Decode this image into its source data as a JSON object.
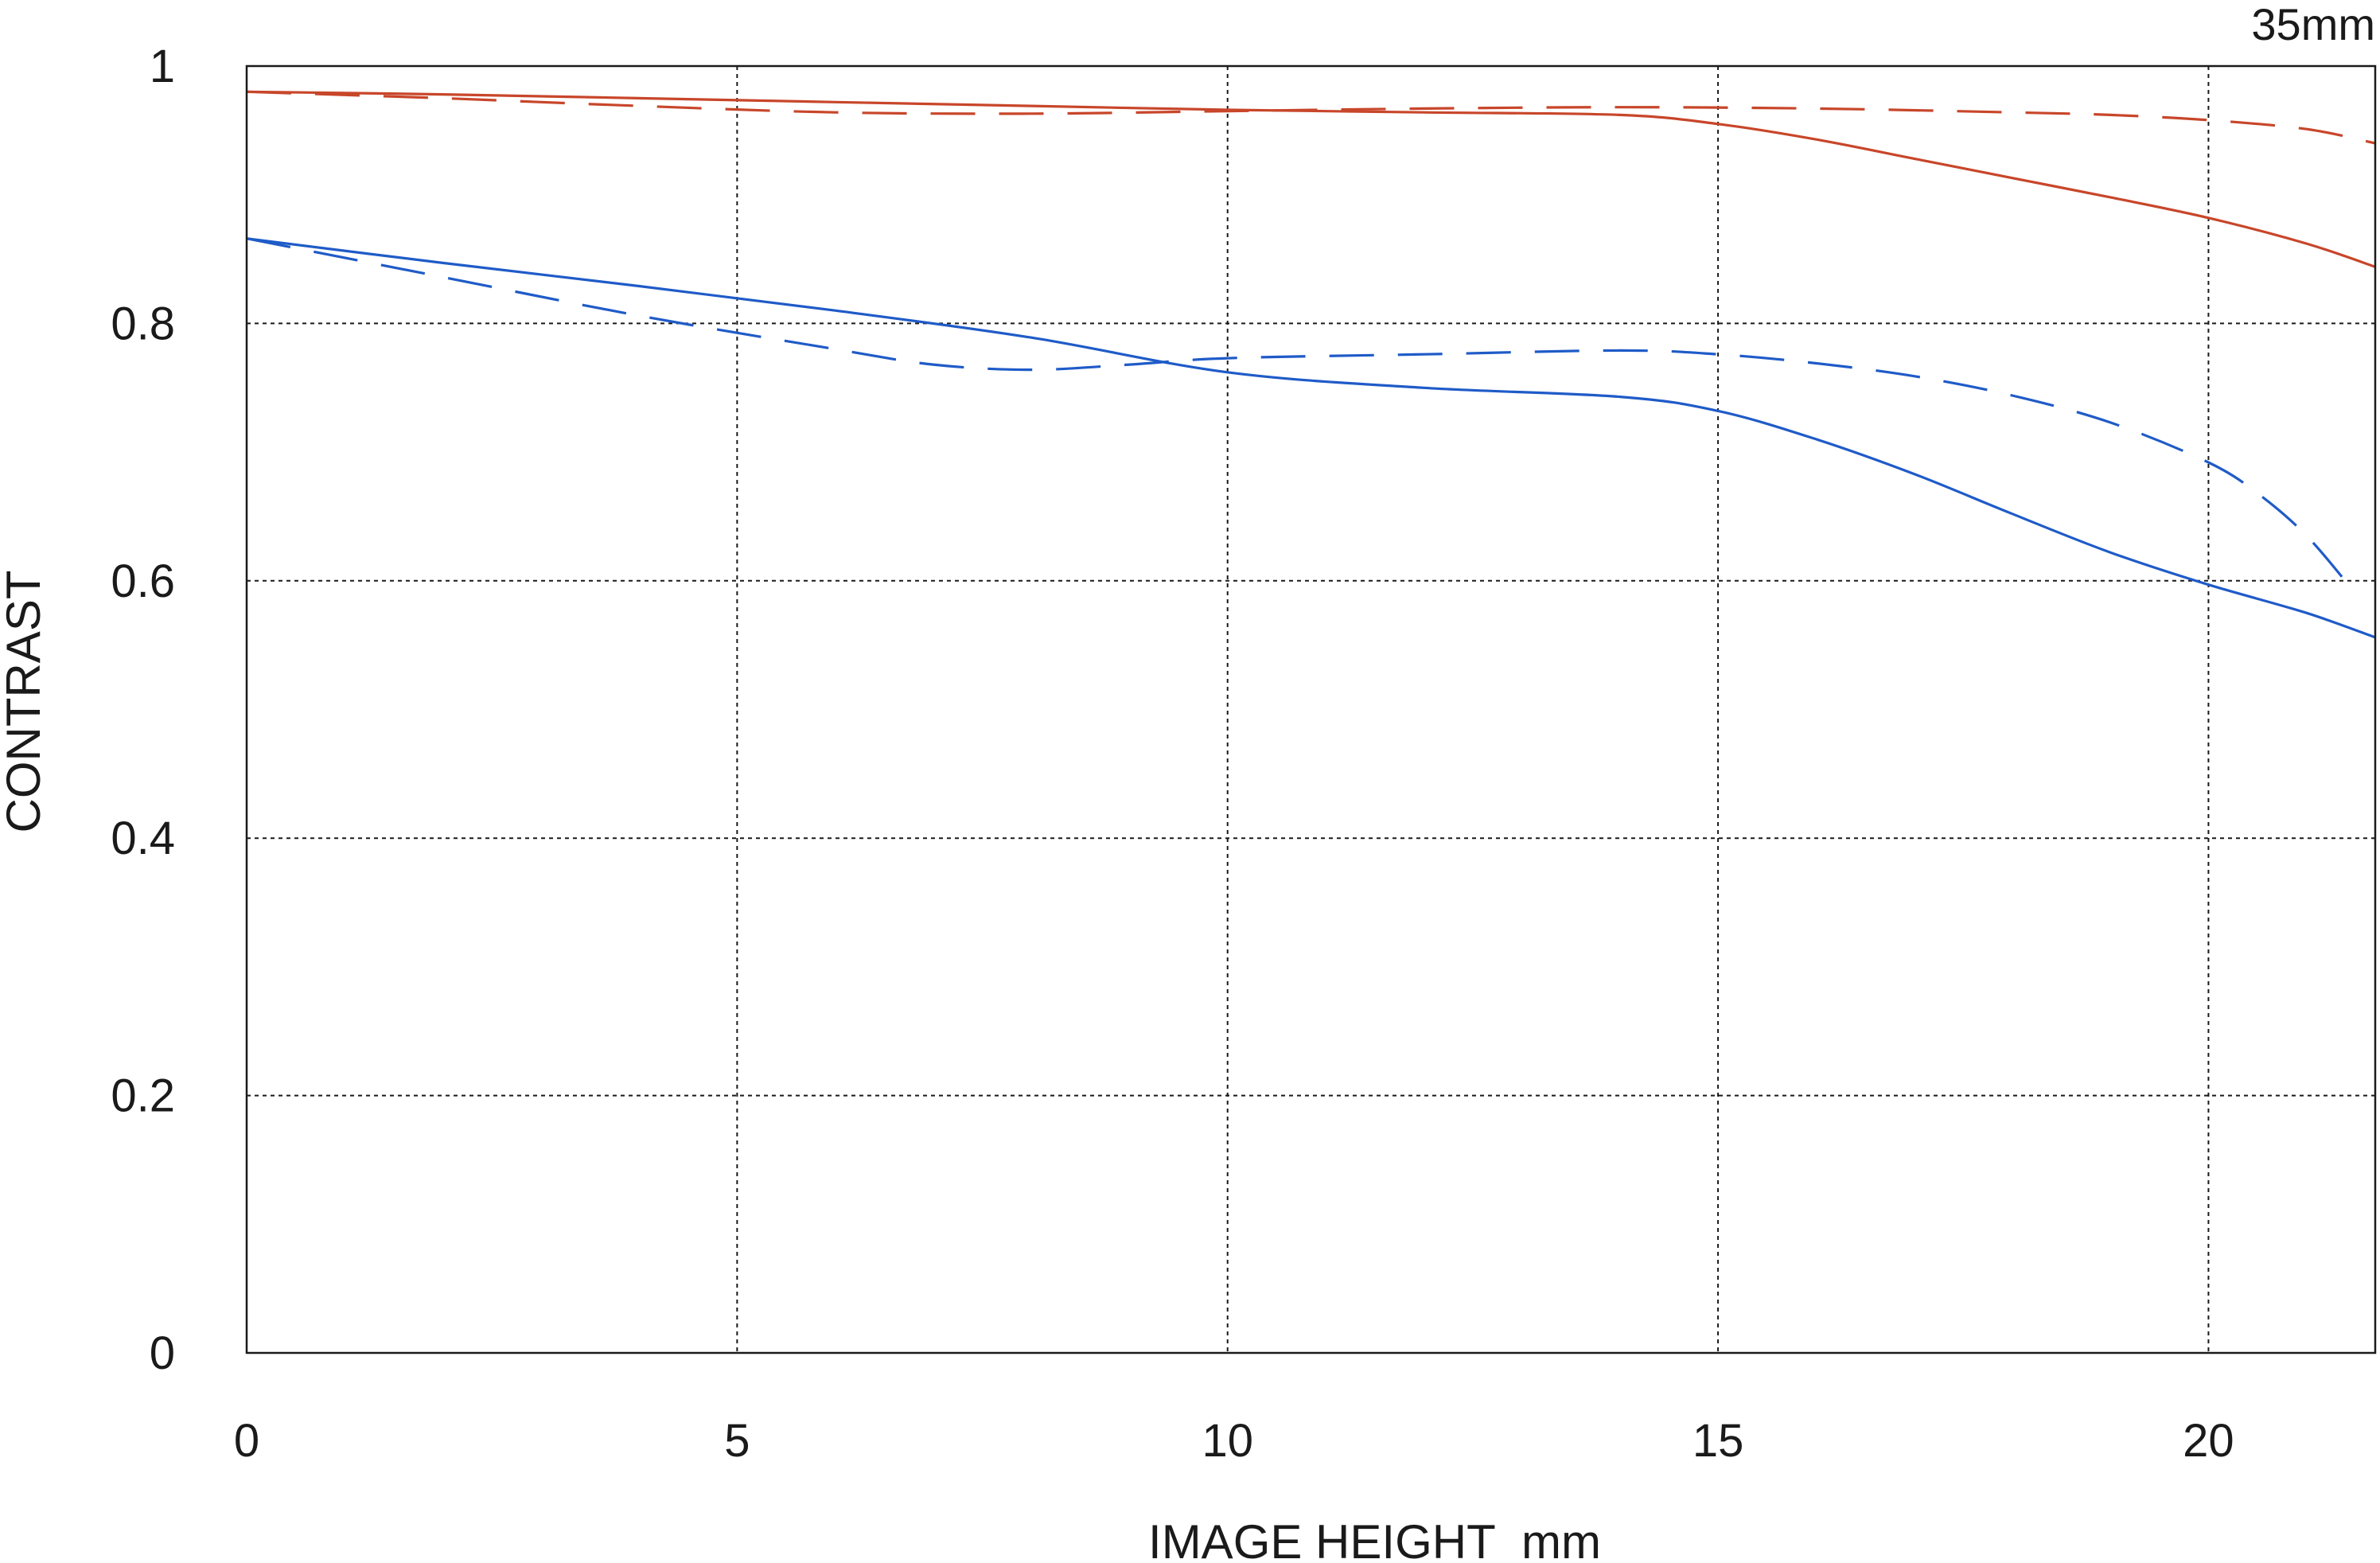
{
  "chart_data": {
    "type": "line",
    "title": "",
    "corner_label": "35mm",
    "xlabel": "IMAGE HEIGHT  mm",
    "ylabel": "CONTRAST",
    "xlim": [
      0,
      21.7
    ],
    "ylim": [
      0,
      1
    ],
    "x_ticks": [
      {
        "value": 0,
        "label": "0"
      },
      {
        "value": 5,
        "label": "5"
      },
      {
        "value": 10,
        "label": "10"
      },
      {
        "value": 15,
        "label": "15"
      },
      {
        "value": 20,
        "label": "20"
      }
    ],
    "y_ticks": [
      {
        "value": 0,
        "label": "0"
      },
      {
        "value": 0.2,
        "label": "0.2"
      },
      {
        "value": 0.4,
        "label": "0.4"
      },
      {
        "value": 0.6,
        "label": "0.6"
      },
      {
        "value": 0.8,
        "label": "0.8"
      },
      {
        "value": 1,
        "label": "1"
      }
    ],
    "grid": true,
    "legend": "none",
    "series": [
      {
        "color": "#c8462a",
        "style": "solid",
        "x": [
          0,
          2,
          4,
          6,
          8,
          10,
          12,
          14,
          15,
          16,
          17,
          18,
          19,
          20,
          21,
          21.7
        ],
        "y": [
          0.98,
          0.978,
          0.975,
          0.972,
          0.969,
          0.966,
          0.964,
          0.962,
          0.955,
          0.943,
          0.928,
          0.913,
          0.898,
          0.882,
          0.862,
          0.844
        ]
      },
      {
        "color": "#c8462a",
        "style": "dashed",
        "x": [
          0,
          2,
          4,
          6,
          8,
          10,
          12,
          14,
          16,
          18,
          19,
          20,
          21,
          21.7
        ],
        "y": [
          0.98,
          0.975,
          0.969,
          0.964,
          0.963,
          0.965,
          0.967,
          0.968,
          0.967,
          0.964,
          0.962,
          0.958,
          0.951,
          0.94
        ]
      },
      {
        "color": "#1f5bc8",
        "style": "solid",
        "x": [
          0,
          2,
          4,
          6,
          8,
          10,
          12,
          14,
          15,
          16,
          17,
          18,
          19,
          20,
          21,
          21.7
        ],
        "y": [
          0.866,
          0.847,
          0.829,
          0.81,
          0.789,
          0.762,
          0.75,
          0.743,
          0.732,
          0.71,
          0.683,
          0.652,
          0.622,
          0.597,
          0.575,
          0.556
        ]
      },
      {
        "color": "#1f5bc8",
        "style": "dashed",
        "x": [
          0,
          2,
          4,
          6,
          7,
          8,
          9,
          10,
          12,
          14,
          15,
          16,
          17,
          18,
          19,
          20,
          20.5,
          21,
          21.5
        ],
        "y": [
          0.866,
          0.836,
          0.806,
          0.78,
          0.768,
          0.764,
          0.768,
          0.773,
          0.776,
          0.779,
          0.776,
          0.769,
          0.759,
          0.744,
          0.723,
          0.692,
          0.668,
          0.635,
          0.59
        ]
      }
    ]
  }
}
